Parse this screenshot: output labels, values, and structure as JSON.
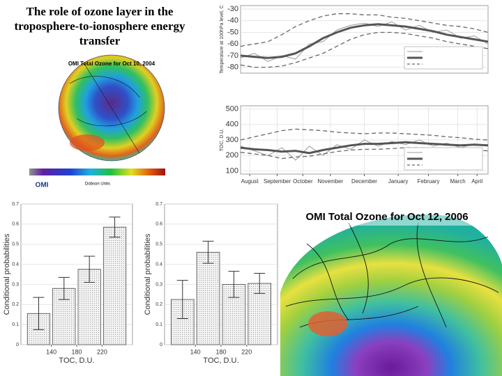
{
  "title": "The role of ozone layer in the troposphere-to-ionosphere energy transfer",
  "maps": [
    {
      "title": "OMI Total Ozone for Oct 10, 2004",
      "caption": "Dobson Units",
      "logo": "OMI"
    },
    {
      "title": "OMI Total Ozone for Oct 12, 2006"
    }
  ],
  "chart_data": [
    {
      "type": "line",
      "ylabel": "Temperature at 100hPa level, C",
      "x": [
        0,
        15,
        30,
        45,
        60,
        75,
        90,
        105,
        120,
        135,
        150,
        165,
        180,
        195,
        210,
        225,
        240,
        255,
        270
      ],
      "xlim": [
        0,
        270
      ],
      "series": [
        {
          "color": "#9a9a9a",
          "width": 1,
          "values": [
            -72,
            -68,
            -75,
            -70,
            -73,
            -60,
            -58,
            -48,
            -44,
            -42,
            -45,
            -41,
            -48,
            -44,
            -50,
            -48,
            -55,
            -53,
            -60
          ]
        },
        {
          "color": "#555555",
          "width": 3,
          "values": [
            -70,
            -71,
            -72,
            -71,
            -68,
            -62,
            -55,
            -50,
            -46,
            -44,
            -43,
            -44,
            -45,
            -47,
            -49,
            -52,
            -54,
            -56,
            -58
          ]
        },
        {
          "color": "#666666",
          "width": 1.3,
          "dash": true,
          "values": [
            -62,
            -60,
            -58,
            -52,
            -45,
            -40,
            -36,
            -34,
            -34,
            -35,
            -35,
            -37,
            -38,
            -40,
            -42,
            -44,
            -45,
            -47,
            -50
          ]
        },
        {
          "color": "#666666",
          "width": 1.3,
          "dash": true,
          "values": [
            -78,
            -80,
            -80,
            -79,
            -76,
            -72,
            -68,
            -62,
            -56,
            -52,
            -50,
            -50,
            -51,
            -53,
            -55,
            -58,
            -60,
            -62,
            -64
          ]
        }
      ],
      "ylim": [
        -85,
        -27
      ],
      "yticks": [
        -30,
        -40,
        -50,
        -60,
        -70,
        -80
      ],
      "grid": true
    },
    {
      "type": "line",
      "ylabel": "TOC, D.U.",
      "x": [
        0,
        15,
        30,
        45,
        60,
        75,
        90,
        105,
        120,
        135,
        150,
        165,
        180,
        195,
        210,
        225,
        240,
        255,
        270
      ],
      "xlim": [
        0,
        270
      ],
      "xticks": [
        {
          "value": 10,
          "label": "August"
        },
        {
          "value": 40,
          "label": "September"
        },
        {
          "value": 68,
          "label": "October"
        },
        {
          "value": 98,
          "label": "November"
        },
        {
          "value": 135,
          "label": "December"
        },
        {
          "value": 172,
          "label": "January"
        },
        {
          "value": 205,
          "label": "February"
        },
        {
          "value": 237,
          "label": "March"
        },
        {
          "value": 258,
          "label": "April"
        }
      ],
      "series": [
        {
          "color": "#9a9a9a",
          "width": 1,
          "values": [
            260,
            230,
            200,
            250,
            170,
            260,
            200,
            270,
            240,
            300,
            260,
            290,
            270,
            300,
            260,
            280,
            250,
            275,
            260
          ]
        },
        {
          "color": "#555555",
          "width": 3,
          "values": [
            250,
            240,
            235,
            225,
            230,
            215,
            235,
            250,
            265,
            275,
            275,
            280,
            285,
            280,
            275,
            270,
            265,
            270,
            265
          ]
        },
        {
          "color": "#666666",
          "width": 1.3,
          "dash": true,
          "values": [
            300,
            320,
            340,
            360,
            370,
            365,
            360,
            350,
            345,
            340,
            345,
            345,
            340,
            335,
            330,
            320,
            315,
            305,
            300
          ]
        },
        {
          "color": "#666666",
          "width": 1.3,
          "dash": true,
          "values": [
            220,
            210,
            200,
            180,
            190,
            195,
            210,
            225,
            235,
            240,
            240,
            245,
            250,
            250,
            245,
            240,
            240,
            235,
            230
          ]
        }
      ],
      "ylim": [
        80,
        520
      ],
      "yticks": [
        100,
        200,
        300,
        400,
        500
      ],
      "grid": true
    },
    {
      "type": "histogram",
      "xlabel": "TOC, D.U.",
      "ylabel": "Conditional probabilities",
      "bins": [
        100,
        140,
        180,
        220,
        260
      ],
      "values": [
        0.155,
        0.28,
        0.375,
        0.585
      ],
      "errors": [
        0.08,
        0.055,
        0.065,
        0.05
      ],
      "xlim": [
        92,
        268
      ],
      "xticks": [
        140,
        180,
        220
      ],
      "ylim": [
        0,
        0.7
      ],
      "yticks": [
        0,
        0.1,
        0.2,
        0.3,
        0.4,
        0.5,
        0.6,
        0.7
      ],
      "grid": true
    },
    {
      "type": "histogram",
      "xlabel": "TOC, D.U.",
      "ylabel": "Conditional probabilities",
      "bins": [
        100,
        140,
        180,
        220,
        260
      ],
      "values": [
        0.225,
        0.46,
        0.3,
        0.305
      ],
      "errors": [
        0.095,
        0.055,
        0.065,
        0.05
      ],
      "xlim": [
        92,
        268
      ],
      "xticks": [
        140,
        180,
        220
      ],
      "ylim": [
        0,
        0.7
      ],
      "yticks": [
        0,
        0.1,
        0.2,
        0.3,
        0.4,
        0.5,
        0.6,
        0.7
      ],
      "grid": true
    }
  ]
}
